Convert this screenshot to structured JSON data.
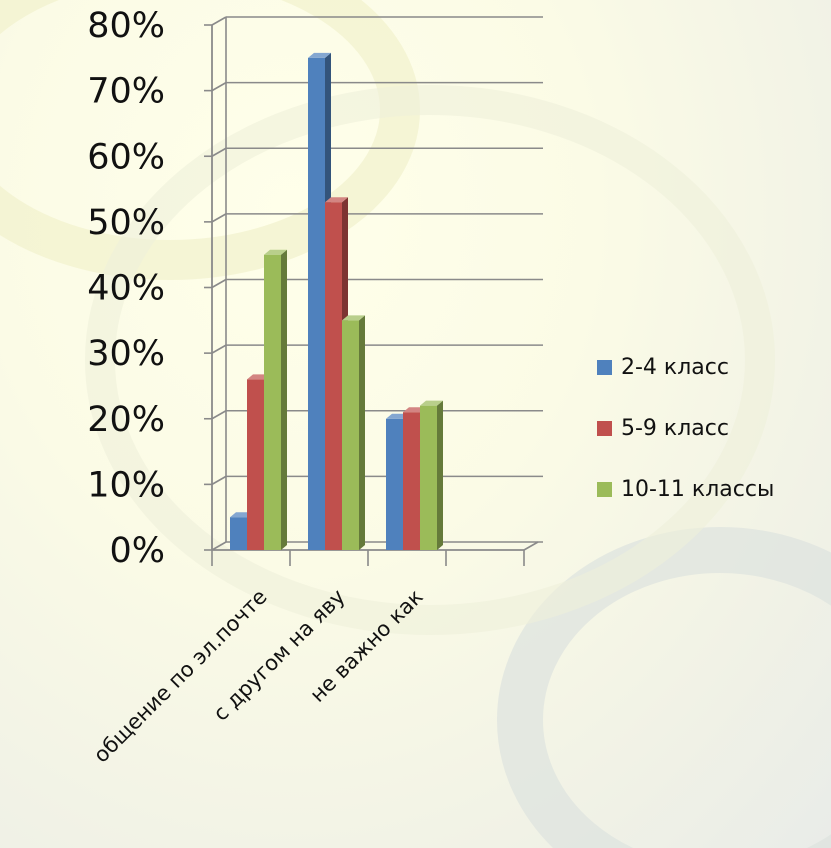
{
  "chart_data": {
    "type": "bar",
    "title": "",
    "xlabel": "",
    "ylabel": "",
    "ylim": [
      0,
      80
    ],
    "y_ticks": [
      "0%",
      "10%",
      "20%",
      "30%",
      "40%",
      "50%",
      "60%",
      "70%",
      "80%"
    ],
    "categories": [
      "общение по эл.почте",
      "с другом на яву",
      "не важно как"
    ],
    "series": [
      {
        "name": "2-4 класс",
        "values": [
          5,
          75,
          20
        ],
        "color": "#4F81BD"
      },
      {
        "name": "5-9 класс",
        "values": [
          26,
          53,
          21
        ],
        "color": "#C0504D"
      },
      {
        "name": "10-11 классы",
        "values": [
          45,
          35,
          22
        ],
        "color": "#9BBB59"
      }
    ],
    "grid": true,
    "legend_position": "right",
    "bar_style": "3d"
  }
}
